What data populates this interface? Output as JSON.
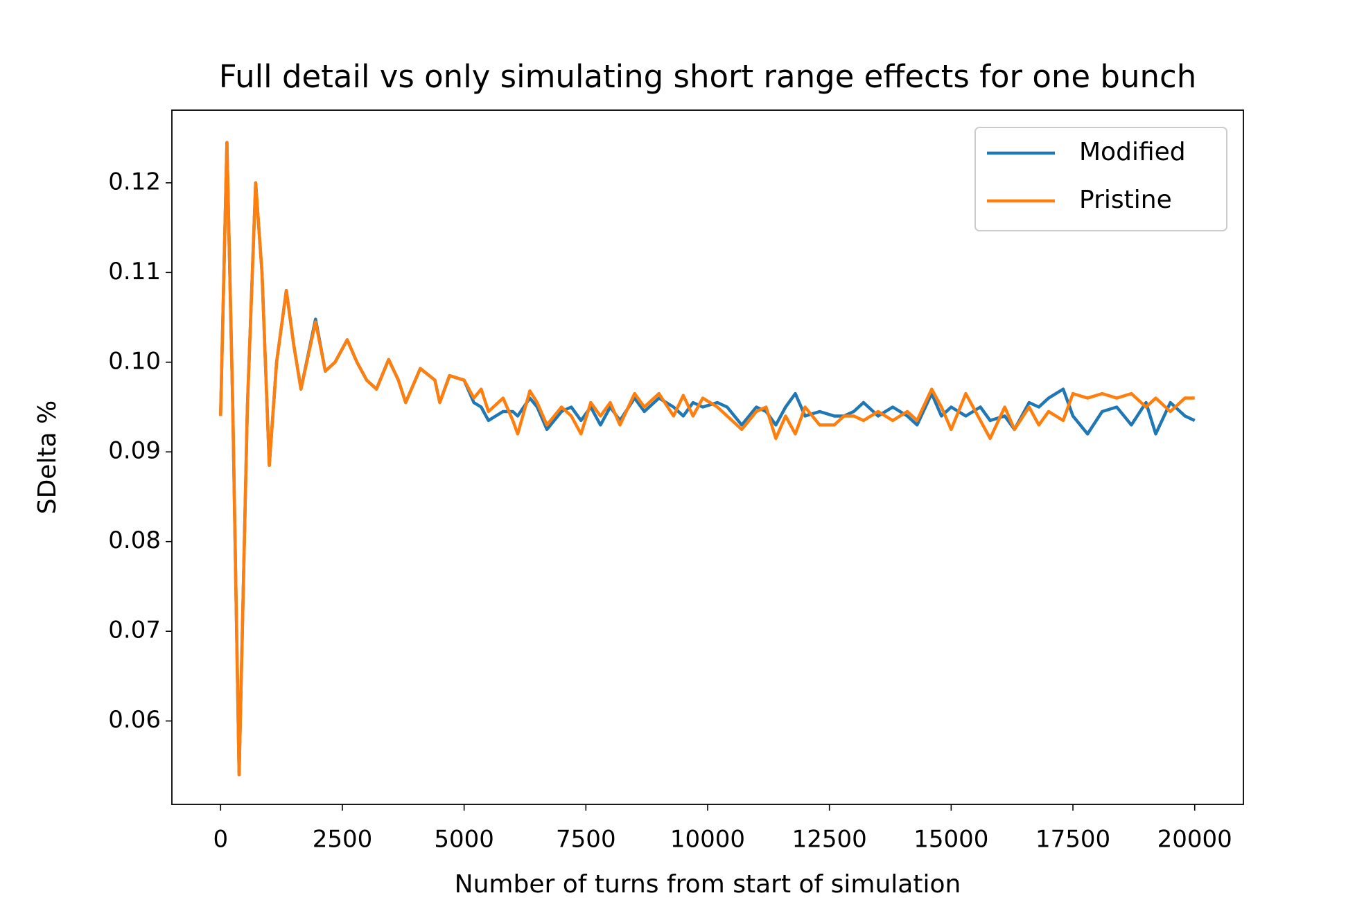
{
  "chart_data": {
    "type": "line",
    "title": "Full detail vs only simulating short range effects for one bunch",
    "x_label": "Number of turns from start of simulation",
    "y_label": "SDelta %",
    "x": [
      0,
      130,
      250,
      380,
      550,
      720,
      850,
      1000,
      1150,
      1350,
      1500,
      1650,
      1950,
      2150,
      2350,
      2600,
      2800,
      3000,
      3200,
      3450,
      3650,
      3800,
      4100,
      4400,
      4500,
      4700,
      5000,
      5200,
      5350,
      5500,
      5800,
      6000,
      6100,
      6350,
      6500,
      6700,
      7000,
      7200,
      7400,
      7600,
      7800,
      8000,
      8200,
      8500,
      8700,
      9000,
      9300,
      9500,
      9700,
      9900,
      10200,
      10400,
      10700,
      11000,
      11200,
      11400,
      11600,
      11800,
      12000,
      12300,
      12600,
      12800,
      13000,
      13200,
      13500,
      13800,
      14100,
      14300,
      14600,
      14800,
      15000,
      15300,
      15600,
      15800,
      16100,
      16300,
      16600,
      16800,
      17000,
      17300,
      17500,
      17800,
      18100,
      18400,
      18700,
      19000,
      19200,
      19500,
      19800,
      20000
    ],
    "series": [
      {
        "name": "Modified",
        "color": "#1f77b4",
        "values": [
          0.094,
          0.1245,
          0.095,
          0.054,
          0.095,
          0.12,
          0.11,
          0.0885,
          0.1,
          0.108,
          0.102,
          0.097,
          0.1048,
          0.099,
          0.1,
          0.1025,
          0.1,
          0.098,
          0.097,
          0.1003,
          0.098,
          0.0955,
          0.0993,
          0.098,
          0.0955,
          0.0985,
          0.098,
          0.0955,
          0.095,
          0.0935,
          0.0945,
          0.0945,
          0.094,
          0.096,
          0.095,
          0.0925,
          0.0945,
          0.095,
          0.0935,
          0.095,
          0.093,
          0.095,
          0.0935,
          0.096,
          0.0945,
          0.096,
          0.095,
          0.094,
          0.0955,
          0.095,
          0.0955,
          0.095,
          0.093,
          0.095,
          0.0945,
          0.093,
          0.095,
          0.0965,
          0.094,
          0.0945,
          0.094,
          0.094,
          0.0945,
          0.0955,
          0.094,
          0.095,
          0.094,
          0.093,
          0.0965,
          0.094,
          0.095,
          0.094,
          0.095,
          0.0935,
          0.094,
          0.0925,
          0.0955,
          0.095,
          0.096,
          0.097,
          0.094,
          0.092,
          0.0945,
          0.095,
          0.093,
          0.0955,
          0.092,
          0.0955,
          0.094,
          0.0935
        ]
      },
      {
        "name": "Pristine",
        "color": "#ff7f0e",
        "values": [
          0.094,
          0.1245,
          0.095,
          0.054,
          0.095,
          0.12,
          0.11,
          0.0885,
          0.1,
          0.108,
          0.102,
          0.097,
          0.1045,
          0.099,
          0.1,
          0.1025,
          0.1,
          0.098,
          0.097,
          0.1003,
          0.098,
          0.0955,
          0.0993,
          0.098,
          0.0955,
          0.0985,
          0.098,
          0.096,
          0.097,
          0.0945,
          0.096,
          0.0935,
          0.092,
          0.0968,
          0.0955,
          0.093,
          0.095,
          0.094,
          0.092,
          0.0955,
          0.094,
          0.0955,
          0.093,
          0.0965,
          0.095,
          0.0965,
          0.094,
          0.0963,
          0.094,
          0.096,
          0.095,
          0.094,
          0.0925,
          0.0945,
          0.095,
          0.0915,
          0.094,
          0.092,
          0.095,
          0.093,
          0.093,
          0.094,
          0.094,
          0.0935,
          0.0945,
          0.0935,
          0.0945,
          0.0935,
          0.097,
          0.095,
          0.0925,
          0.0965,
          0.0935,
          0.0915,
          0.095,
          0.0925,
          0.095,
          0.093,
          0.0945,
          0.0935,
          0.0965,
          0.096,
          0.0965,
          0.096,
          0.0965,
          0.095,
          0.096,
          0.0945,
          0.096,
          0.096
        ]
      }
    ],
    "xlim": [
      -1000,
      21000
    ],
    "xticks": [
      0,
      2500,
      5000,
      7500,
      10000,
      12500,
      15000,
      17500,
      20000
    ],
    "ylim": [
      0.0507,
      0.1281
    ],
    "yticks": [
      0.06,
      0.07,
      0.08,
      0.09,
      {
        "value": 0.1,
        "label": "0.10"
      },
      0.11,
      0.12
    ],
    "legend": "upper right",
    "grid": false
  }
}
